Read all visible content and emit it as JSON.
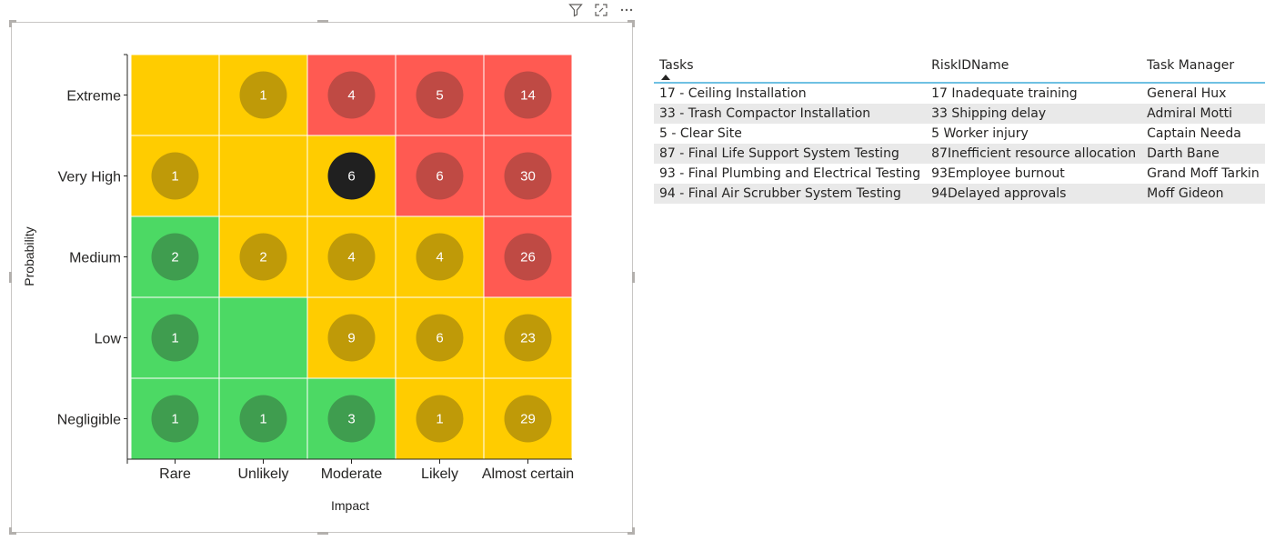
{
  "visual_header": {
    "icons": [
      "filter-icon",
      "focus-mode-icon",
      "more-options-icon"
    ]
  },
  "chart_data": {
    "type": "heatmap",
    "title": "",
    "xlabel": "Impact",
    "ylabel": "Probability",
    "x_categories": [
      "Rare",
      "Unlikely",
      "Moderate",
      "Likely",
      "Almost certain"
    ],
    "y_categories": [
      "Extreme",
      "Very High",
      "Medium",
      "Low",
      "Negligible"
    ],
    "cells": [
      {
        "y": "Extreme",
        "x": "Rare",
        "zone": "yellow",
        "count": null
      },
      {
        "y": "Extreme",
        "x": "Unlikely",
        "zone": "yellow",
        "count": 1
      },
      {
        "y": "Extreme",
        "x": "Moderate",
        "zone": "red",
        "count": 4
      },
      {
        "y": "Extreme",
        "x": "Likely",
        "zone": "red",
        "count": 5
      },
      {
        "y": "Extreme",
        "x": "Almost certain",
        "zone": "red",
        "count": 14
      },
      {
        "y": "Very High",
        "x": "Rare",
        "zone": "yellow",
        "count": 1
      },
      {
        "y": "Very High",
        "x": "Unlikely",
        "zone": "yellow",
        "count": null
      },
      {
        "y": "Very High",
        "x": "Moderate",
        "zone": "yellow",
        "count": 6,
        "selected": true
      },
      {
        "y": "Very High",
        "x": "Likely",
        "zone": "red",
        "count": 6
      },
      {
        "y": "Very High",
        "x": "Almost certain",
        "zone": "red",
        "count": 30
      },
      {
        "y": "Medium",
        "x": "Rare",
        "zone": "green",
        "count": 2
      },
      {
        "y": "Medium",
        "x": "Unlikely",
        "zone": "yellow",
        "count": 2
      },
      {
        "y": "Medium",
        "x": "Moderate",
        "zone": "yellow",
        "count": 4
      },
      {
        "y": "Medium",
        "x": "Likely",
        "zone": "yellow",
        "count": 4
      },
      {
        "y": "Medium",
        "x": "Almost certain",
        "zone": "red",
        "count": 26
      },
      {
        "y": "Low",
        "x": "Rare",
        "zone": "green",
        "count": 1
      },
      {
        "y": "Low",
        "x": "Unlikely",
        "zone": "green",
        "count": null
      },
      {
        "y": "Low",
        "x": "Moderate",
        "zone": "yellow",
        "count": 9
      },
      {
        "y": "Low",
        "x": "Likely",
        "zone": "yellow",
        "count": 6
      },
      {
        "y": "Low",
        "x": "Almost certain",
        "zone": "yellow",
        "count": 23
      },
      {
        "y": "Negligible",
        "x": "Rare",
        "zone": "green",
        "count": 1
      },
      {
        "y": "Negligible",
        "x": "Unlikely",
        "zone": "green",
        "count": 1
      },
      {
        "y": "Negligible",
        "x": "Moderate",
        "zone": "green",
        "count": 3
      },
      {
        "y": "Negligible",
        "x": "Likely",
        "zone": "yellow",
        "count": 1
      },
      {
        "y": "Negligible",
        "x": "Almost certain",
        "zone": "yellow",
        "count": 29
      }
    ],
    "colors": {
      "green": "#4cd964",
      "yellow": "#ffcc00",
      "red": "#ff5a52",
      "bubble_green": "#3f9d4f",
      "bubble_yellow": "#bf9a08",
      "bubble_red": "#bf4a44",
      "bubble_selected": "#202020",
      "grid_line": "#ffffff"
    }
  },
  "table": {
    "headers": {
      "task": "Tasks",
      "risk": "RiskIDName",
      "manager": "Task Manager"
    },
    "sort_column": "task",
    "rows": [
      {
        "task": "17 - Ceiling Installation",
        "risk": "17 Inadequate training",
        "manager": "General Hux"
      },
      {
        "task": "33 - Trash Compactor Installation",
        "risk": "33 Shipping delay",
        "manager": "Admiral Motti"
      },
      {
        "task": "5 - Clear Site",
        "risk": "5 Worker injury",
        "manager": "Captain Needa"
      },
      {
        "task": "87 - Final Life Support System Testing",
        "risk": "87Inefficient resource allocation",
        "manager": "Darth Bane"
      },
      {
        "task": "93 - Final Plumbing and Electrical Testing",
        "risk": "93Employee burnout",
        "manager": "Grand Moff Tarkin"
      },
      {
        "task": "94 - Final Air Scrubber System Testing",
        "risk": "94Delayed approvals",
        "manager": "Moff Gideon"
      }
    ],
    "accent_color": "#6fc1e3",
    "stripe_color": "#e9e9e9"
  }
}
